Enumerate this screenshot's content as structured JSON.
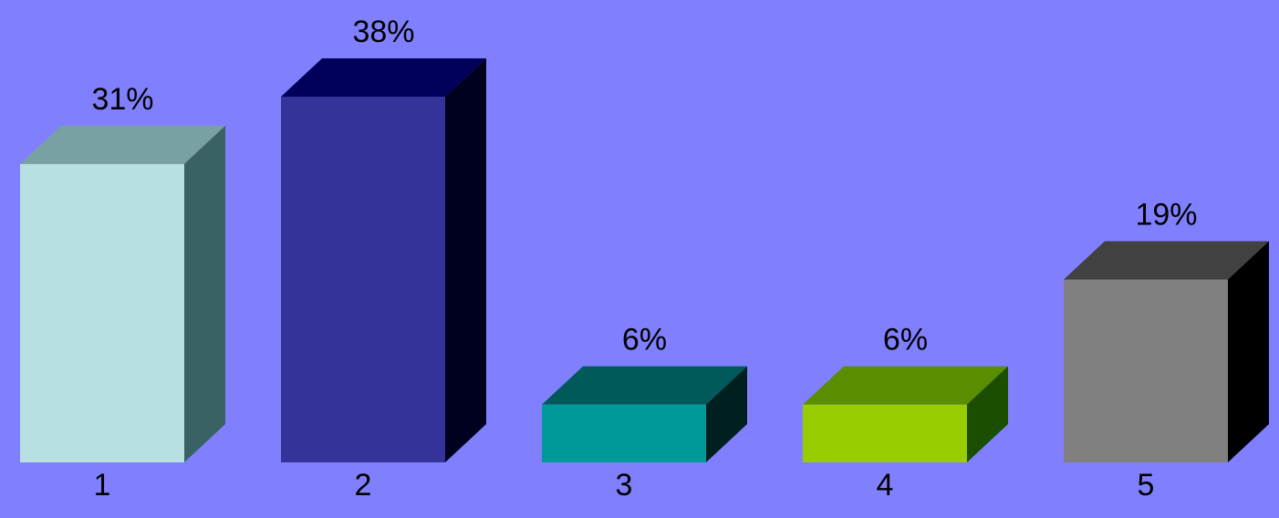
{
  "background_color": "#8080FF",
  "chart_data": {
    "type": "bar",
    "style": "3d-column",
    "categories": [
      "1",
      "2",
      "3",
      "4",
      "5"
    ],
    "values": [
      31,
      38,
      6,
      6,
      19
    ],
    "value_labels": [
      "31%",
      "38%",
      "6%",
      "6%",
      "19%"
    ],
    "unit": "%",
    "ylim": [
      0,
      38
    ],
    "grid": false,
    "legend": "none",
    "title": "",
    "xlabel": "",
    "ylabel": "",
    "bar_colors": [
      {
        "front": "#B8DFE2",
        "top": "#79A0A3",
        "side": "#3A6163"
      },
      {
        "front": "#333399",
        "top": "#00005A",
        "side": "#00001F"
      },
      {
        "front": "#009999",
        "top": "#005A5A",
        "side": "#001F1F"
      },
      {
        "front": "#99CC00",
        "top": "#5A8D00",
        "side": "#1B4E00"
      },
      {
        "front": "#808080",
        "top": "#414141",
        "side": "#000000"
      }
    ]
  }
}
